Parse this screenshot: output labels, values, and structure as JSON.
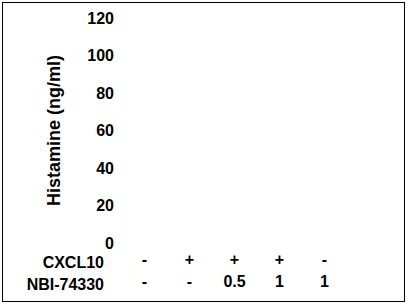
{
  "chart_data": {
    "type": "bar",
    "y_label": "Histamine (ng/ml)",
    "categories": [
      null,
      null,
      null,
      null,
      null
    ],
    "values": [
      null,
      null,
      null,
      null,
      null
    ],
    "ylim": [
      0,
      120
    ],
    "yticks": [
      0,
      20,
      40,
      60,
      80,
      100,
      120
    ],
    "grid": false,
    "treatments": [
      {
        "name": "CXCL10",
        "values": [
          "-",
          "+",
          "+",
          "+",
          "-"
        ]
      },
      {
        "name": "NBI-74330",
        "values": [
          "-",
          "-",
          "0.5",
          "1",
          "1"
        ]
      }
    ]
  }
}
